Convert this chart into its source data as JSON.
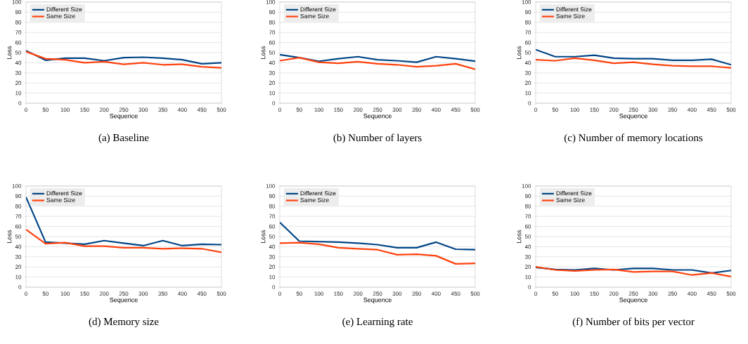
{
  "chart_data": [
    {
      "type": "line",
      "title": "(a)  Baseline",
      "xlabel": "Sequence",
      "ylabel": "Loss",
      "x": [
        0,
        50,
        100,
        150,
        200,
        250,
        300,
        350,
        400,
        450,
        500
      ],
      "xlim": [
        0,
        500
      ],
      "ylim": [
        0,
        100
      ],
      "xticks": [
        0,
        50,
        100,
        150,
        200,
        250,
        300,
        350,
        400,
        450,
        500
      ],
      "yticks": [
        0,
        10,
        20,
        30,
        40,
        50,
        60,
        70,
        80,
        90,
        100
      ],
      "grid": "y",
      "legend": "top left",
      "series": [
        {
          "name": "Different Size",
          "color": "#004586",
          "values": [
            52,
            42.5,
            44.5,
            44.5,
            42,
            45,
            45.5,
            44.5,
            43,
            39,
            40
          ]
        },
        {
          "name": "Same Size",
          "color": "#ff420e",
          "values": [
            51,
            44,
            43,
            40,
            41,
            38.5,
            40,
            38,
            38.5,
            36,
            35
          ]
        }
      ]
    },
    {
      "type": "line",
      "title": "(b)  Number of layers",
      "xlabel": "Sequence",
      "ylabel": "Loss",
      "x": [
        0,
        50,
        100,
        150,
        200,
        250,
        300,
        350,
        400,
        450,
        500
      ],
      "xlim": [
        0,
        500
      ],
      "ylim": [
        0,
        100
      ],
      "xticks": [
        0,
        50,
        100,
        150,
        200,
        250,
        300,
        350,
        400,
        450,
        500
      ],
      "yticks": [
        0,
        10,
        20,
        30,
        40,
        50,
        60,
        70,
        80,
        90,
        100
      ],
      "grid": "y",
      "legend": "top left",
      "series": [
        {
          "name": "Different Size",
          "color": "#004586",
          "values": [
            48,
            45,
            41.5,
            44,
            46,
            43,
            42,
            40.5,
            46,
            44,
            41.5
          ]
        },
        {
          "name": "Same Size",
          "color": "#ff420e",
          "values": [
            42,
            45,
            40.5,
            39.5,
            41,
            39,
            38,
            36,
            37,
            39,
            33.5
          ]
        }
      ]
    },
    {
      "type": "line",
      "title": "(c)  Number of memory locations",
      "xlabel": "Sequence",
      "ylabel": "Loss",
      "x": [
        0,
        50,
        100,
        150,
        200,
        250,
        300,
        350,
        400,
        450,
        500
      ],
      "xlim": [
        0,
        500
      ],
      "ylim": [
        0,
        100
      ],
      "xticks": [
        0,
        50,
        100,
        150,
        200,
        250,
        300,
        350,
        400,
        450,
        500
      ],
      "yticks": [
        0,
        10,
        20,
        30,
        40,
        50,
        60,
        70,
        80,
        90,
        100
      ],
      "grid": "y",
      "legend": "top left",
      "series": [
        {
          "name": "Different Size",
          "color": "#004586",
          "values": [
            53,
            46,
            46,
            47.5,
            44.5,
            44,
            44,
            42.5,
            42.5,
            43.5,
            38
          ]
        },
        {
          "name": "Same Size",
          "color": "#ff420e",
          "values": [
            43,
            42,
            44.5,
            42.5,
            39.5,
            40.5,
            38.5,
            37,
            36.5,
            36.5,
            35
          ]
        }
      ]
    },
    {
      "type": "line",
      "title": "(d)  Memory size",
      "xlabel": "Sequence",
      "ylabel": "Loss",
      "x": [
        0,
        50,
        100,
        150,
        200,
        250,
        300,
        350,
        400,
        450,
        500
      ],
      "xlim": [
        0,
        500
      ],
      "ylim": [
        0,
        100
      ],
      "xticks": [
        0,
        50,
        100,
        150,
        200,
        250,
        300,
        350,
        400,
        450,
        500
      ],
      "yticks": [
        0,
        10,
        20,
        30,
        40,
        50,
        60,
        70,
        80,
        90,
        100
      ],
      "grid": "y",
      "legend": "top left",
      "series": [
        {
          "name": "Different Size",
          "color": "#004586",
          "values": [
            89,
            44.5,
            43.5,
            42.5,
            46,
            43.5,
            41,
            46,
            41,
            42.5,
            42
          ]
        },
        {
          "name": "Same Size",
          "color": "#ff420e",
          "values": [
            57,
            43,
            44,
            40.5,
            40.5,
            39,
            39,
            38,
            38.5,
            38,
            34.5
          ]
        }
      ]
    },
    {
      "type": "line",
      "title": "(e)  Learning rate",
      "xlabel": "Sequence",
      "ylabel": "Loss",
      "x": [
        0,
        50,
        100,
        150,
        200,
        250,
        300,
        350,
        400,
        450,
        500
      ],
      "xlim": [
        0,
        500
      ],
      "ylim": [
        0,
        100
      ],
      "xticks": [
        0,
        50,
        100,
        150,
        200,
        250,
        300,
        350,
        400,
        450,
        500
      ],
      "yticks": [
        0,
        10,
        20,
        30,
        40,
        50,
        60,
        70,
        80,
        90,
        100
      ],
      "grid": "y",
      "legend": "top left",
      "series": [
        {
          "name": "Different Size",
          "color": "#004586",
          "values": [
            64,
            45.5,
            45,
            44.5,
            43.5,
            42,
            39,
            39,
            44.5,
            37.5,
            37
          ]
        },
        {
          "name": "Same Size",
          "color": "#ff420e",
          "values": [
            43.5,
            44,
            42.5,
            39,
            38,
            37,
            32,
            32.5,
            31,
            23,
            23.5
          ]
        }
      ]
    },
    {
      "type": "line",
      "title": "(f)  Number of bits per vector",
      "xlabel": "Sequence",
      "ylabel": "Loss",
      "x": [
        0,
        50,
        100,
        150,
        200,
        250,
        300,
        350,
        400,
        450,
        500
      ],
      "xlim": [
        0,
        500
      ],
      "ylim": [
        0,
        100
      ],
      "xticks": [
        0,
        50,
        100,
        150,
        200,
        250,
        300,
        350,
        400,
        450,
        500
      ],
      "yticks": [
        0,
        10,
        20,
        30,
        40,
        50,
        60,
        70,
        80,
        90,
        100
      ],
      "grid": "y",
      "legend": "top left",
      "series": [
        {
          "name": "Different Size",
          "color": "#004586",
          "values": [
            19.5,
            17.5,
            17,
            18.5,
            17,
            18.5,
            18.5,
            17,
            17,
            14,
            16.5
          ]
        },
        {
          "name": "Same Size",
          "color": "#ff420e",
          "values": [
            20,
            17,
            16,
            17,
            17.5,
            15,
            15.5,
            15.5,
            12,
            14,
            10.5
          ]
        }
      ]
    }
  ]
}
